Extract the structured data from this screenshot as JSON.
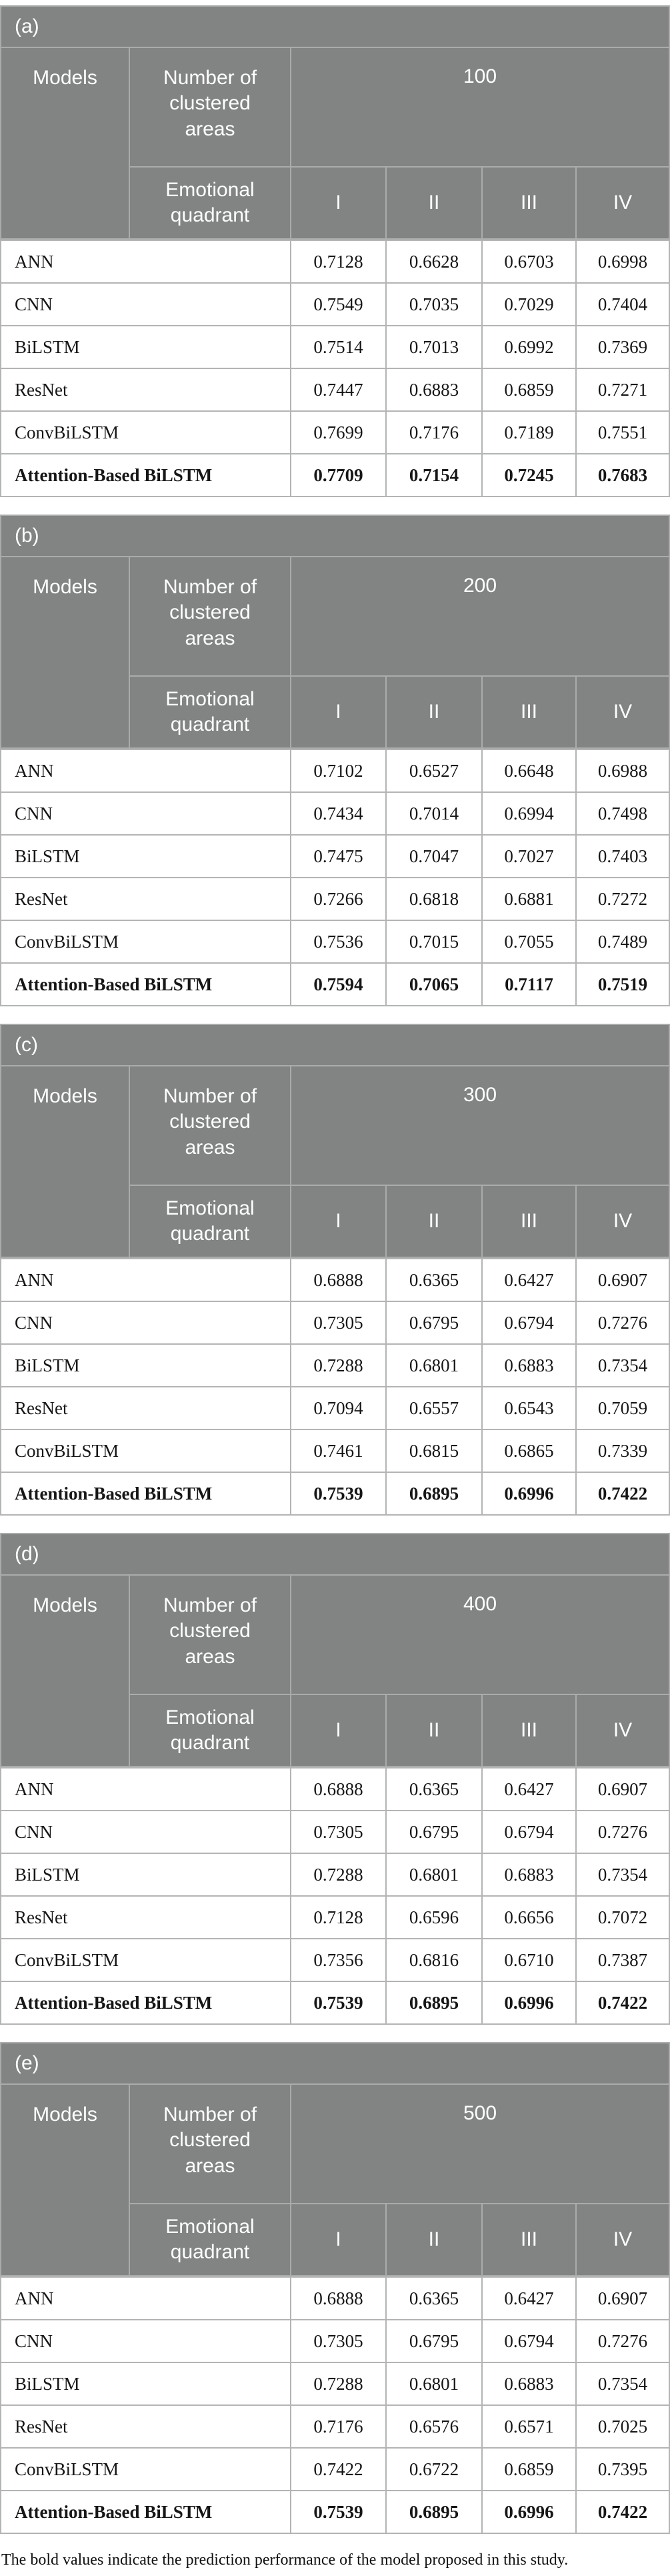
{
  "footer": "The bold values indicate the prediction performance of the model proposed in this study.",
  "colors": {
    "header_bg": "#828484",
    "header_divider": "#aaacab",
    "data_divider": "#b3b5b4",
    "header_text": "#ffffff",
    "data_text": "#161616"
  },
  "header_labels": {
    "models": "Models",
    "clustered": "Number of clustered areas",
    "quadrant": "Emotional quadrant",
    "quadrants": [
      "I",
      "II",
      "III",
      "IV"
    ]
  },
  "tables": [
    {
      "caption": "(a)",
      "areas": "100",
      "rows": [
        {
          "model": "ANN",
          "values": [
            "0.7128",
            "0.6628",
            "0.6703",
            "0.6998"
          ],
          "bold": false
        },
        {
          "model": "CNN",
          "values": [
            "0.7549",
            "0.7035",
            "0.7029",
            "0.7404"
          ],
          "bold": false
        },
        {
          "model": "BiLSTM",
          "values": [
            "0.7514",
            "0.7013",
            "0.6992",
            "0.7369"
          ],
          "bold": false
        },
        {
          "model": "ResNet",
          "values": [
            "0.7447",
            "0.6883",
            "0.6859",
            "0.7271"
          ],
          "bold": false
        },
        {
          "model": "ConvBiLSTM",
          "values": [
            "0.7699",
            "0.7176",
            "0.7189",
            "0.7551"
          ],
          "bold": false
        },
        {
          "model": "Attention-Based BiLSTM",
          "values": [
            "0.7709",
            "0.7154",
            "0.7245",
            "0.7683"
          ],
          "bold": true
        }
      ]
    },
    {
      "caption": "(b)",
      "areas": "200",
      "rows": [
        {
          "model": "ANN",
          "values": [
            "0.7102",
            "0.6527",
            "0.6648",
            "0.6988"
          ],
          "bold": false
        },
        {
          "model": "CNN",
          "values": [
            "0.7434",
            "0.7014",
            "0.6994",
            "0.7498"
          ],
          "bold": false
        },
        {
          "model": "BiLSTM",
          "values": [
            "0.7475",
            "0.7047",
            "0.7027",
            "0.7403"
          ],
          "bold": false
        },
        {
          "model": "ResNet",
          "values": [
            "0.7266",
            "0.6818",
            "0.6881",
            "0.7272"
          ],
          "bold": false
        },
        {
          "model": "ConvBiLSTM",
          "values": [
            "0.7536",
            "0.7015",
            "0.7055",
            "0.7489"
          ],
          "bold": false
        },
        {
          "model": "Attention-Based BiLSTM",
          "values": [
            "0.7594",
            "0.7065",
            "0.7117",
            "0.7519"
          ],
          "bold": true
        }
      ]
    },
    {
      "caption": "(c)",
      "areas": "300",
      "rows": [
        {
          "model": "ANN",
          "values": [
            "0.6888",
            "0.6365",
            "0.6427",
            "0.6907"
          ],
          "bold": false
        },
        {
          "model": "CNN",
          "values": [
            "0.7305",
            "0.6795",
            "0.6794",
            "0.7276"
          ],
          "bold": false
        },
        {
          "model": "BiLSTM",
          "values": [
            "0.7288",
            "0.6801",
            "0.6883",
            "0.7354"
          ],
          "bold": false
        },
        {
          "model": "ResNet",
          "values": [
            "0.7094",
            "0.6557",
            "0.6543",
            "0.7059"
          ],
          "bold": false
        },
        {
          "model": "ConvBiLSTM",
          "values": [
            "0.7461",
            "0.6815",
            "0.6865",
            "0.7339"
          ],
          "bold": false
        },
        {
          "model": "Attention-Based BiLSTM",
          "values": [
            "0.7539",
            "0.6895",
            "0.6996",
            "0.7422"
          ],
          "bold": true
        }
      ]
    },
    {
      "caption": "(d)",
      "areas": "400",
      "rows": [
        {
          "model": "ANN",
          "values": [
            "0.6888",
            "0.6365",
            "0.6427",
            "0.6907"
          ],
          "bold": false
        },
        {
          "model": "CNN",
          "values": [
            "0.7305",
            "0.6795",
            "0.6794",
            "0.7276"
          ],
          "bold": false
        },
        {
          "model": "BiLSTM",
          "values": [
            "0.7288",
            "0.6801",
            "0.6883",
            "0.7354"
          ],
          "bold": false
        },
        {
          "model": "ResNet",
          "values": [
            "0.7128",
            "0.6596",
            "0.6656",
            "0.7072"
          ],
          "bold": false
        },
        {
          "model": "ConvBiLSTM",
          "values": [
            "0.7356",
            "0.6816",
            "0.6710",
            "0.7387"
          ],
          "bold": false
        },
        {
          "model": "Attention-Based BiLSTM",
          "values": [
            "0.7539",
            "0.6895",
            "0.6996",
            "0.7422"
          ],
          "bold": true
        }
      ]
    },
    {
      "caption": "(e)",
      "areas": "500",
      "rows": [
        {
          "model": "ANN",
          "values": [
            "0.6888",
            "0.6365",
            "0.6427",
            "0.6907"
          ],
          "bold": false
        },
        {
          "model": "CNN",
          "values": [
            "0.7305",
            "0.6795",
            "0.6794",
            "0.7276"
          ],
          "bold": false
        },
        {
          "model": "BiLSTM",
          "values": [
            "0.7288",
            "0.6801",
            "0.6883",
            "0.7354"
          ],
          "bold": false
        },
        {
          "model": "ResNet",
          "values": [
            "0.7176",
            "0.6576",
            "0.6571",
            "0.7025"
          ],
          "bold": false
        },
        {
          "model": "ConvBiLSTM",
          "values": [
            "0.7422",
            "0.6722",
            "0.6859",
            "0.7395"
          ],
          "bold": false
        },
        {
          "model": "Attention-Based BiLSTM",
          "values": [
            "0.7539",
            "0.6895",
            "0.6996",
            "0.7422"
          ],
          "bold": true
        }
      ]
    }
  ]
}
